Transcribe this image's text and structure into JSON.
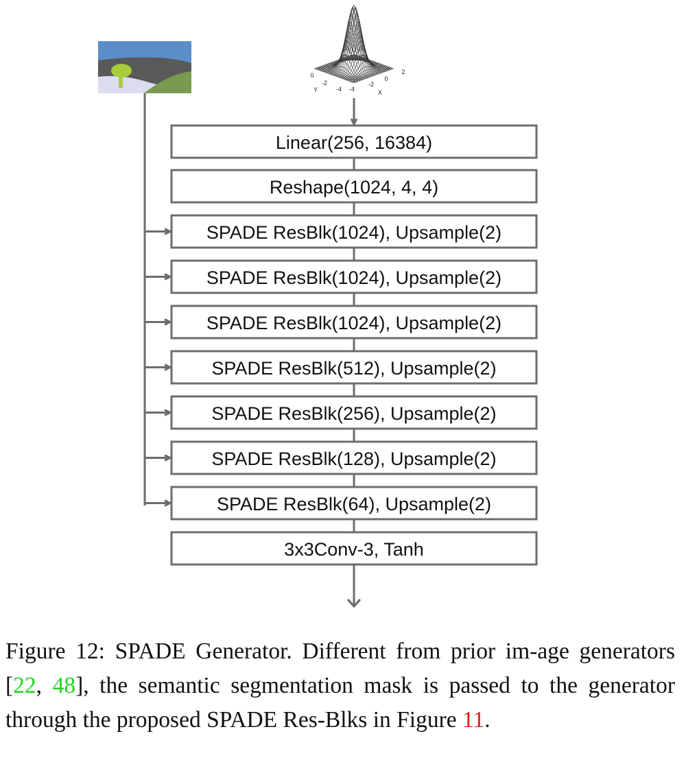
{
  "diagram": {
    "title": "SPADE Generator",
    "blocks": [
      {
        "label": "Linear(256, 16384)",
        "has_mask_input": false
      },
      {
        "label": "Reshape(1024, 4, 4)",
        "has_mask_input": false
      },
      {
        "label": "SPADE ResBlk(1024), Upsample(2)",
        "has_mask_input": true
      },
      {
        "label": "SPADE ResBlk(1024), Upsample(2)",
        "has_mask_input": true
      },
      {
        "label": "SPADE ResBlk(1024), Upsample(2)",
        "has_mask_input": true
      },
      {
        "label": "SPADE ResBlk(512), Upsample(2)",
        "has_mask_input": true
      },
      {
        "label": "SPADE ResBlk(256), Upsample(2)",
        "has_mask_input": true
      },
      {
        "label": "SPADE ResBlk(128), Upsample(2)",
        "has_mask_input": true
      },
      {
        "label": "SPADE ResBlk(64), Upsample(2)",
        "has_mask_input": true
      },
      {
        "label": "3x3Conv-3, Tanh",
        "has_mask_input": false
      }
    ],
    "gaussian_plot": {
      "y_ticks": [
        "0",
        "-2",
        "-4"
      ],
      "x_ticks": [
        "-4",
        "-2",
        "0",
        "2"
      ],
      "y_label": "Y",
      "x_label": "X"
    },
    "colors": {
      "line": "#6d6d6d",
      "box_border": "#6d6d6d",
      "sky": "#5b8ec9",
      "mountain": "#595959",
      "ground": "#dcdcf0",
      "hill": "#7a9a50",
      "tree": "#a9cc3a"
    }
  },
  "caption": {
    "prefix": "Figure 12: SPADE Generator.  Different from prior im-age generators [",
    "cite1": "22",
    "sep": ", ",
    "cite2": "48",
    "middle": "], the semantic segmentation mask is passed to the generator through the proposed SPADE Res-Blks in Figure ",
    "cite3": "11",
    "suffix": "."
  }
}
